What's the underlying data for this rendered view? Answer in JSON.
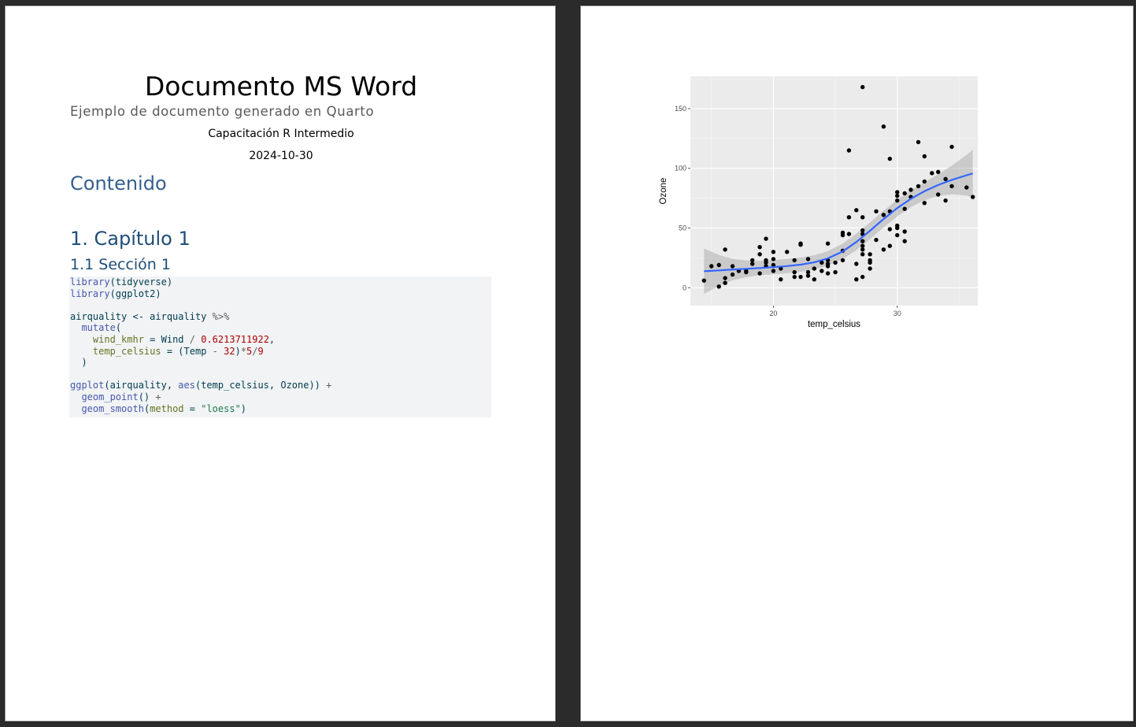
{
  "page1": {
    "title": "Documento MS Word",
    "subtitle": "Ejemplo de documento generado en Quarto",
    "author": "Capacitación R Intermedio",
    "date": "2024-10-30",
    "toc_heading": "Contenido",
    "chapter_heading": "1. Capítulo 1",
    "section_heading": "1.1 Sección 1",
    "code_lines": [
      [
        {
          "t": "library",
          "c": "fn"
        },
        {
          "t": "(tidyverse)",
          "c": "plain"
        }
      ],
      [
        {
          "t": "library",
          "c": "fn"
        },
        {
          "t": "(ggplot2)",
          "c": "plain"
        }
      ],
      [],
      [
        {
          "t": "airquality ",
          "c": "plain"
        },
        {
          "t": "<-",
          "c": "plain"
        },
        {
          "t": " airquality ",
          "c": "plain"
        },
        {
          "t": "%>%",
          "c": "op"
        }
      ],
      [
        {
          "t": "  ",
          "c": "plain"
        },
        {
          "t": "mutate",
          "c": "fn"
        },
        {
          "t": "(",
          "c": "plain"
        }
      ],
      [
        {
          "t": "    ",
          "c": "plain"
        },
        {
          "t": "wind_kmhr",
          "c": "arg"
        },
        {
          "t": " = ",
          "c": "plain"
        },
        {
          "t": "Wind ",
          "c": "plain"
        },
        {
          "t": "/",
          "c": "op"
        },
        {
          "t": " ",
          "c": "plain"
        },
        {
          "t": "0.6213711922",
          "c": "num"
        },
        {
          "t": ",",
          "c": "plain"
        }
      ],
      [
        {
          "t": "    ",
          "c": "plain"
        },
        {
          "t": "temp_celsius",
          "c": "arg"
        },
        {
          "t": " = ",
          "c": "plain"
        },
        {
          "t": "(Temp ",
          "c": "plain"
        },
        {
          "t": "-",
          "c": "op"
        },
        {
          "t": " ",
          "c": "plain"
        },
        {
          "t": "32",
          "c": "num"
        },
        {
          "t": ")",
          "c": "plain"
        },
        {
          "t": "*",
          "c": "op"
        },
        {
          "t": "5",
          "c": "num"
        },
        {
          "t": "/",
          "c": "op"
        },
        {
          "t": "9",
          "c": "num"
        }
      ],
      [
        {
          "t": "  )",
          "c": "plain"
        }
      ],
      [],
      [
        {
          "t": "ggplot",
          "c": "fn"
        },
        {
          "t": "(airquality, ",
          "c": "plain"
        },
        {
          "t": "aes",
          "c": "fn"
        },
        {
          "t": "(temp_celsius, Ozone)) ",
          "c": "plain"
        },
        {
          "t": "+",
          "c": "op"
        }
      ],
      [
        {
          "t": "  ",
          "c": "plain"
        },
        {
          "t": "geom_point",
          "c": "fn"
        },
        {
          "t": "() ",
          "c": "plain"
        },
        {
          "t": "+",
          "c": "op"
        }
      ],
      [
        {
          "t": "  ",
          "c": "plain"
        },
        {
          "t": "geom_smooth",
          "c": "fn"
        },
        {
          "t": "(",
          "c": "plain"
        },
        {
          "t": "method",
          "c": "arg"
        },
        {
          "t": " = ",
          "c": "plain"
        },
        {
          "t": "\"loess\"",
          "c": "str"
        },
        {
          "t": ")",
          "c": "plain"
        }
      ]
    ]
  },
  "chart_data": {
    "type": "scatter",
    "title": "",
    "xlabel": "temp_celsius",
    "ylabel": "Ozone",
    "xlim": [
      13.3,
      36.5
    ],
    "ylim": [
      -15,
      177
    ],
    "x_ticks": [
      20,
      30
    ],
    "y_ticks": [
      0,
      50,
      100,
      150
    ],
    "grid": true,
    "colors": {
      "panel": "#ebebeb",
      "grid": "#ffffff",
      "point": "#000000",
      "smooth": "#3366ff",
      "band": "#bfbfbf"
    },
    "points": [
      [
        14.4,
        6
      ],
      [
        15.0,
        18
      ],
      [
        15.6,
        19
      ],
      [
        15.6,
        1
      ],
      [
        16.1,
        32
      ],
      [
        16.1,
        8
      ],
      [
        16.1,
        4
      ],
      [
        16.7,
        11
      ],
      [
        16.7,
        18
      ],
      [
        17.2,
        14
      ],
      [
        17.8,
        14
      ],
      [
        17.8,
        13
      ],
      [
        18.3,
        20
      ],
      [
        18.3,
        23
      ],
      [
        18.9,
        34
      ],
      [
        18.9,
        28
      ],
      [
        18.9,
        12
      ],
      [
        19.4,
        41
      ],
      [
        19.4,
        21
      ],
      [
        19.4,
        18
      ],
      [
        19.4,
        23
      ],
      [
        20.0,
        30
      ],
      [
        20.0,
        24
      ],
      [
        20.0,
        14
      ],
      [
        20.0,
        19
      ],
      [
        20.6,
        7
      ],
      [
        20.6,
        16
      ],
      [
        21.1,
        30
      ],
      [
        21.7,
        23
      ],
      [
        21.7,
        13
      ],
      [
        21.7,
        9
      ],
      [
        22.2,
        37
      ],
      [
        22.2,
        36
      ],
      [
        22.2,
        9
      ],
      [
        22.8,
        24
      ],
      [
        22.8,
        13
      ],
      [
        22.8,
        10
      ],
      [
        23.3,
        7
      ],
      [
        23.3,
        16
      ],
      [
        23.9,
        14
      ],
      [
        23.9,
        21
      ],
      [
        24.4,
        37
      ],
      [
        24.4,
        23
      ],
      [
        24.4,
        20
      ],
      [
        24.4,
        18
      ],
      [
        24.4,
        12
      ],
      [
        25.0,
        13
      ],
      [
        25.0,
        21
      ],
      [
        25.6,
        23
      ],
      [
        25.6,
        46
      ],
      [
        25.6,
        44
      ],
      [
        25.6,
        31
      ],
      [
        26.1,
        115
      ],
      [
        26.1,
        45
      ],
      [
        26.1,
        59
      ],
      [
        26.7,
        65
      ],
      [
        26.7,
        20
      ],
      [
        26.7,
        7
      ],
      [
        27.2,
        168
      ],
      [
        27.2,
        59
      ],
      [
        27.2,
        48
      ],
      [
        27.2,
        45
      ],
      [
        27.2,
        35
      ],
      [
        27.2,
        39
      ],
      [
        27.2,
        32
      ],
      [
        27.2,
        28
      ],
      [
        27.2,
        9
      ],
      [
        27.8,
        23
      ],
      [
        27.8,
        21
      ],
      [
        27.8,
        16
      ],
      [
        27.8,
        28
      ],
      [
        28.3,
        64
      ],
      [
        28.3,
        40
      ],
      [
        28.9,
        135
      ],
      [
        28.9,
        61
      ],
      [
        28.9,
        32
      ],
      [
        29.4,
        108
      ],
      [
        29.4,
        64
      ],
      [
        29.4,
        49
      ],
      [
        29.4,
        35
      ],
      [
        30.0,
        80
      ],
      [
        30.0,
        77
      ],
      [
        30.0,
        73
      ],
      [
        30.0,
        52
      ],
      [
        30.0,
        50
      ],
      [
        30.0,
        44
      ],
      [
        30.6,
        79
      ],
      [
        30.6,
        66
      ],
      [
        30.6,
        47
      ],
      [
        30.6,
        39
      ],
      [
        31.1,
        82
      ],
      [
        31.1,
        76
      ],
      [
        31.7,
        122
      ],
      [
        31.7,
        85
      ],
      [
        32.2,
        110
      ],
      [
        32.2,
        89
      ],
      [
        32.2,
        71
      ],
      [
        32.8,
        96
      ],
      [
        33.3,
        97
      ],
      [
        33.3,
        78
      ],
      [
        33.9,
        91
      ],
      [
        33.9,
        73
      ],
      [
        34.4,
        118
      ],
      [
        34.4,
        85
      ],
      [
        35.6,
        84
      ],
      [
        36.1,
        76
      ]
    ],
    "smooth": [
      [
        14.4,
        13.8
      ],
      [
        15.6,
        14.5
      ],
      [
        16.7,
        15.2
      ],
      [
        17.8,
        15.8
      ],
      [
        18.9,
        16.5
      ],
      [
        20.0,
        17.2
      ],
      [
        21.1,
        18.1
      ],
      [
        22.2,
        19.3
      ],
      [
        23.3,
        21.2
      ],
      [
        24.4,
        24.6
      ],
      [
        25.6,
        30.4
      ],
      [
        26.7,
        38.3
      ],
      [
        27.8,
        47.7
      ],
      [
        28.9,
        57.5
      ],
      [
        30.0,
        66.7
      ],
      [
        31.1,
        74.5
      ],
      [
        32.2,
        80.8
      ],
      [
        33.3,
        86.0
      ],
      [
        34.4,
        90.3
      ],
      [
        35.6,
        94.2
      ],
      [
        36.1,
        95.7
      ]
    ],
    "band_half_width": [
      [
        14.4,
        19
      ],
      [
        15.6,
        13
      ],
      [
        16.7,
        9
      ],
      [
        17.8,
        7
      ],
      [
        18.9,
        6
      ],
      [
        20.0,
        6
      ],
      [
        21.1,
        6
      ],
      [
        22.2,
        6
      ],
      [
        23.3,
        6
      ],
      [
        24.4,
        6
      ],
      [
        25.6,
        6.5
      ],
      [
        26.7,
        7
      ],
      [
        27.8,
        7
      ],
      [
        28.9,
        7
      ],
      [
        30.0,
        7
      ],
      [
        31.1,
        7
      ],
      [
        32.2,
        7.5
      ],
      [
        33.3,
        9
      ],
      [
        34.4,
        12
      ],
      [
        35.6,
        17
      ],
      [
        36.1,
        20
      ]
    ]
  }
}
